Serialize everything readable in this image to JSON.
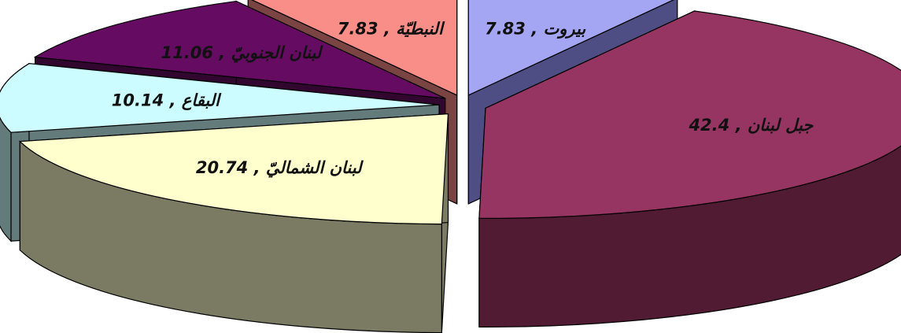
{
  "chart_data": {
    "type": "pie",
    "variant": "3d-exploded",
    "title": "",
    "slices": [
      {
        "label": "بيروت",
        "value": 7.83,
        "label_text": "بيروت , 7.83",
        "top_color": "#a5a6f3",
        "side_color": "#4e4d84"
      },
      {
        "label": "جبل لبنان",
        "value": 42.4,
        "label_text": "جبل لبنان , 42.4",
        "top_color": "#973562",
        "side_color": "#501b33"
      },
      {
        "label": "لبنان الشماليّ",
        "value": 20.74,
        "label_text": "لبنان الشماليّ , 20.74",
        "top_color": "#ffffcd",
        "side_color": "#7b7b63"
      },
      {
        "label": "البقاع",
        "value": 10.14,
        "label_text": "البقاع , 10.14",
        "top_color": "#ccfcff",
        "side_color": "#647b7c"
      },
      {
        "label": "لبنان الجنوبيّ",
        "value": 11.06,
        "label_text": "لبنان الجنوبيّ , 11.06",
        "top_color": "#650b61",
        "side_color": "#31062f"
      },
      {
        "label": "النبطيّة",
        "value": 7.83,
        "label_text": "النبطيّة , 7.83",
        "top_color": "#f98e88",
        "side_color": "#7a4443"
      }
    ]
  }
}
